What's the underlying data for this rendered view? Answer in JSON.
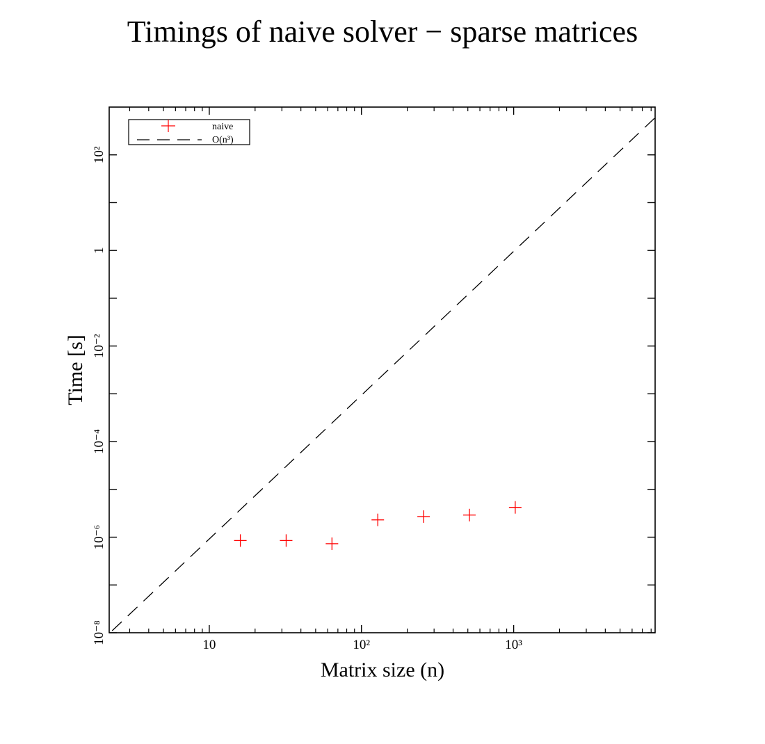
{
  "chart_data": {
    "type": "scatter",
    "title": "Timings of naive solver − sparse matrices",
    "xlabel": "Matrix size (n)",
    "ylabel": "Time [s]",
    "x_scale": "log",
    "y_scale": "log",
    "xlim": [
      2.2,
      8500
    ],
    "ylim": [
      1e-08,
      1000
    ],
    "x_ticks": [
      {
        "value": 10,
        "label": "10"
      },
      {
        "value": 100,
        "label": "10²"
      },
      {
        "value": 1000,
        "label": "10³"
      }
    ],
    "y_ticks": [
      {
        "value": 1e-08,
        "label": "10⁻⁸"
      },
      {
        "value": 1e-06,
        "label": "10⁻⁶"
      },
      {
        "value": 0.0001,
        "label": "10⁻⁴"
      },
      {
        "value": 0.01,
        "label": "10⁻²"
      },
      {
        "value": 1,
        "label": "1"
      },
      {
        "value": 100,
        "label": "10²"
      }
    ],
    "grid": false,
    "legend_position": "top-left",
    "series": [
      {
        "name": "naive",
        "style": "markers",
        "marker": "plus",
        "color": "#ff0000",
        "x": [
          16,
          32,
          64,
          128,
          256,
          512,
          1024
        ],
        "y": [
          8.5e-07,
          8.5e-07,
          7.3e-07,
          2.3e-06,
          2.7e-06,
          2.9e-06,
          4.2e-06
        ]
      },
      {
        "name": "O(n³)",
        "style": "dashed-line",
        "color": "#000000",
        "x": [
          2.3,
          8500
        ],
        "y": [
          1.1e-08,
          600
        ]
      }
    ]
  }
}
